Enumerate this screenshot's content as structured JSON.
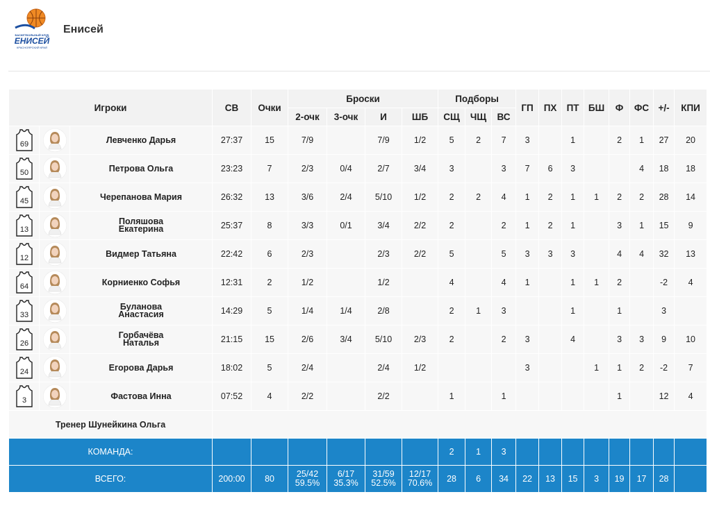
{
  "team": {
    "name": "Енисей",
    "logo_text": [
      "БАСКЕТБОЛЬНЫЙ КЛУБ",
      "ЕНИСЕЙ",
      "КРАСНОЯРСКИЙ КРАЙ"
    ]
  },
  "headers": {
    "players": "Игроки",
    "minutes": "СВ",
    "points": "Очки",
    "shots": "Броски",
    "rebounds": "Подборы",
    "two": "2-очк",
    "three": "3-очк",
    "fg": "И",
    "ft": "ШБ",
    "oreb": "СЩ",
    "dreb": "ЧЩ",
    "reb": "ВС",
    "ast": "ГП",
    "tov": "ПХ",
    "stl": "ПТ",
    "blk": "БШ",
    "pf": "Ф",
    "fd": "ФС",
    "pm": "+/-",
    "eff": "КПИ"
  },
  "players": [
    {
      "number": "69",
      "name": [
        "Левченко Дарья"
      ],
      "min": "27:37",
      "pts": "15",
      "two": "7/9",
      "three": "",
      "fg": "7/9",
      "ft": "1/2",
      "or": "5",
      "dr": "2",
      "tr": "7",
      "as": "3",
      "to": "",
      "st": "1",
      "bs": "",
      "pf": "2",
      "fd": "1",
      "pm": "27",
      "eff": "20"
    },
    {
      "number": "50",
      "name": [
        "Петрова Ольга"
      ],
      "min": "23:23",
      "pts": "7",
      "two": "2/3",
      "three": "0/4",
      "fg": "2/7",
      "ft": "3/4",
      "or": "3",
      "dr": "",
      "tr": "3",
      "as": "7",
      "to": "6",
      "st": "3",
      "bs": "",
      "pf": "",
      "fd": "4",
      "pm": "18",
      "eff": "18"
    },
    {
      "number": "45",
      "name": [
        "Черепанова Мария"
      ],
      "min": "26:32",
      "pts": "13",
      "two": "3/6",
      "three": "2/4",
      "fg": "5/10",
      "ft": "1/2",
      "or": "2",
      "dr": "2",
      "tr": "4",
      "as": "1",
      "to": "2",
      "st": "1",
      "bs": "1",
      "pf": "2",
      "fd": "2",
      "pm": "28",
      "eff": "14"
    },
    {
      "number": "13",
      "name": [
        "Поляшова",
        "Екатерина"
      ],
      "min": "25:37",
      "pts": "8",
      "two": "3/3",
      "three": "0/1",
      "fg": "3/4",
      "ft": "2/2",
      "or": "2",
      "dr": "",
      "tr": "2",
      "as": "1",
      "to": "2",
      "st": "1",
      "bs": "",
      "pf": "3",
      "fd": "1",
      "pm": "15",
      "eff": "9"
    },
    {
      "number": "12",
      "name": [
        "Видмер Татьяна"
      ],
      "min": "22:42",
      "pts": "6",
      "two": "2/3",
      "three": "",
      "fg": "2/3",
      "ft": "2/2",
      "or": "5",
      "dr": "",
      "tr": "5",
      "as": "3",
      "to": "3",
      "st": "3",
      "bs": "",
      "pf": "4",
      "fd": "4",
      "pm": "32",
      "eff": "13"
    },
    {
      "number": "64",
      "name": [
        "Корниенко Софья"
      ],
      "min": "12:31",
      "pts": "2",
      "two": "1/2",
      "three": "",
      "fg": "1/2",
      "ft": "",
      "or": "4",
      "dr": "",
      "tr": "4",
      "as": "1",
      "to": "",
      "st": "1",
      "bs": "1",
      "pf": "2",
      "fd": "",
      "pm": "-2",
      "eff": "4"
    },
    {
      "number": "33",
      "name": [
        "Буланова",
        "Анастасия"
      ],
      "min": "14:29",
      "pts": "5",
      "two": "1/4",
      "three": "1/4",
      "fg": "2/8",
      "ft": "",
      "or": "2",
      "dr": "1",
      "tr": "3",
      "as": "",
      "to": "",
      "st": "1",
      "bs": "",
      "pf": "1",
      "fd": "",
      "pm": "3",
      "eff": ""
    },
    {
      "number": "26",
      "name": [
        "Горбачёва",
        "Наталья"
      ],
      "min": "21:15",
      "pts": "15",
      "two": "2/6",
      "three": "3/4",
      "fg": "5/10",
      "ft": "2/3",
      "or": "2",
      "dr": "",
      "tr": "2",
      "as": "3",
      "to": "",
      "st": "4",
      "bs": "",
      "pf": "3",
      "fd": "3",
      "pm": "9",
      "eff": "10"
    },
    {
      "number": "24",
      "name": [
        "Егорова Дарья"
      ],
      "min": "18:02",
      "pts": "5",
      "two": "2/4",
      "three": "",
      "fg": "2/4",
      "ft": "1/2",
      "or": "",
      "dr": "",
      "tr": "",
      "as": "3",
      "to": "",
      "st": "",
      "bs": "1",
      "pf": "1",
      "fd": "2",
      "pm": "-2",
      "eff": "7"
    },
    {
      "number": "3",
      "name": [
        "Фастова Инна"
      ],
      "min": "07:52",
      "pts": "4",
      "two": "2/2",
      "three": "",
      "fg": "2/2",
      "ft": "",
      "or": "1",
      "dr": "",
      "tr": "1",
      "as": "",
      "to": "",
      "st": "",
      "bs": "",
      "pf": "1",
      "fd": "",
      "pm": "12",
      "eff": "4"
    }
  ],
  "coach": "Тренер Шунейкина Ольга",
  "team_row": {
    "label": "КОМАНДА:",
    "or": "2",
    "dr": "1",
    "tr": "3"
  },
  "total_row": {
    "label": "ВСЕГО:",
    "min": "200:00",
    "pts": "80",
    "two": "25/42",
    "two_pct": "59.5%",
    "three": "6/17",
    "three_pct": "35.3%",
    "fg": "31/59",
    "fg_pct": "52.5%",
    "ft": "12/17",
    "ft_pct": "70.6%",
    "or": "28",
    "dr": "6",
    "tr": "34",
    "as": "22",
    "to": "13",
    "st": "15",
    "bs": "3",
    "pf": "19",
    "fd": "17",
    "pm": "28",
    "eff": ""
  },
  "colors": {
    "accent": "#1c85c9",
    "row_bg": "#f7f7f7",
    "header_bg": "#f2f2f2"
  }
}
